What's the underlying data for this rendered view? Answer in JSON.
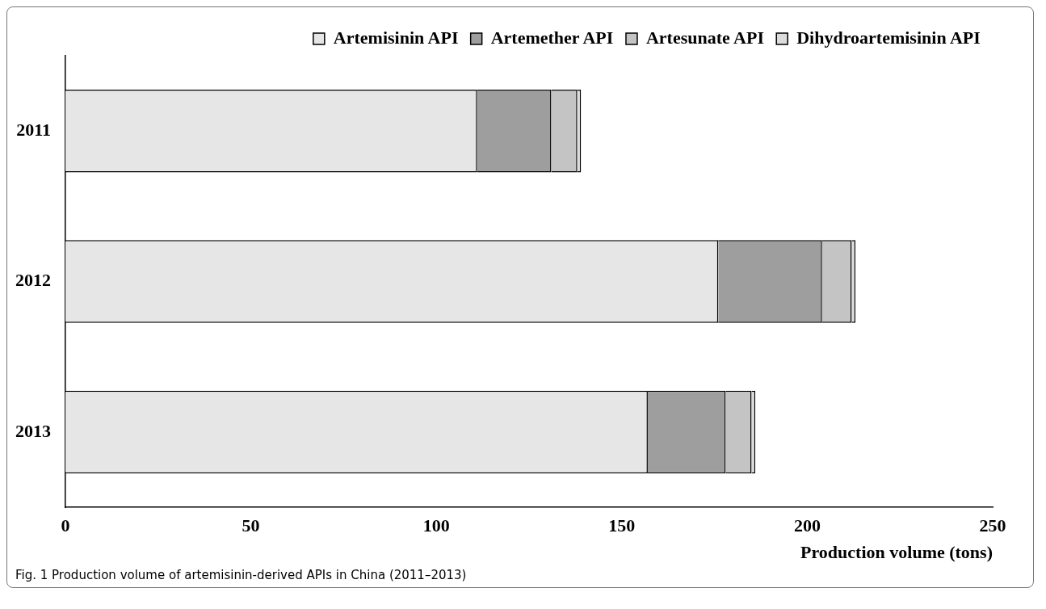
{
  "chart_data": {
    "type": "bar",
    "orientation": "horizontal",
    "stacked": true,
    "categories": [
      "2011",
      "2012",
      "2013"
    ],
    "series": [
      {
        "name": "Artemisinin API",
        "color": "#e6e6e6",
        "values": [
          111,
          176,
          157
        ]
      },
      {
        "name": "Artemether API",
        "color": "#9e9e9e",
        "values": [
          20,
          28,
          21
        ]
      },
      {
        "name": "Artesunate API",
        "color": "#c4c4c4",
        "values": [
          7,
          8,
          7
        ]
      },
      {
        "name": "Dihydroartemisinin API",
        "color": "#dcdcdc",
        "values": [
          1,
          1,
          1
        ]
      }
    ],
    "xlim": [
      0,
      250
    ],
    "xticks": [
      0,
      50,
      100,
      150,
      200,
      250
    ],
    "xlabel": "Production volume (tons)",
    "grid": false,
    "legend": "top right",
    "annotations": [
      "Fig. 1  Production volume of artemisinin-derived APIs in China (2011–2013)"
    ]
  }
}
